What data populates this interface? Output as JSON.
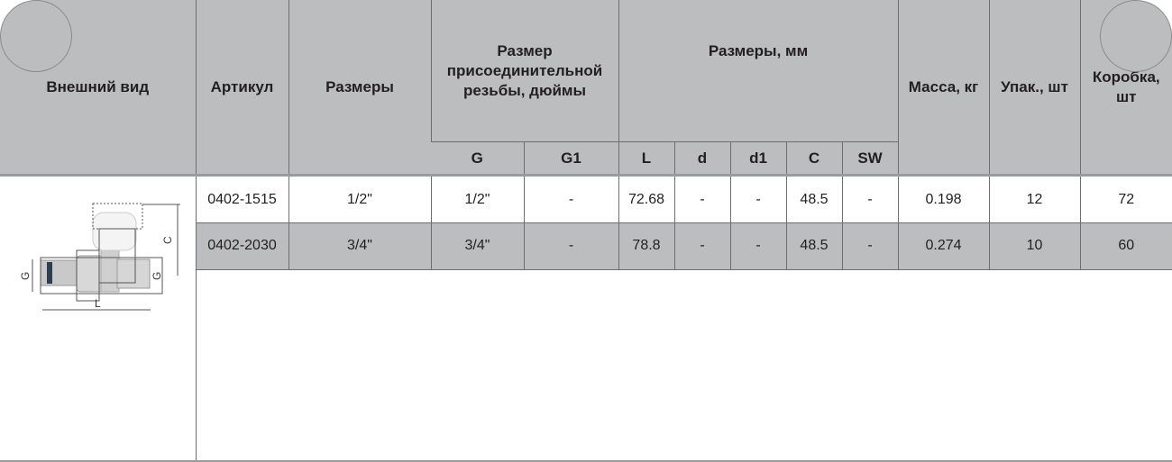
{
  "headers": {
    "appearance": "Внешний вид",
    "article": "Артикул",
    "sizes": "Размеры",
    "thread": "Размер присоединительной резьбы, дюймы",
    "thread_cols": [
      "G",
      "G1"
    ],
    "dims": "Размеры, мм",
    "dims_cols": [
      "L",
      "d",
      "d1",
      "C",
      "SW"
    ],
    "mass": "Масса, кг",
    "pack": "Упак., шт",
    "box": "Коробка, шт"
  },
  "rows": [
    {
      "article": "0402-1515",
      "size": "1/2\"",
      "G": "1/2\"",
      "G1": "-",
      "L": "72.68",
      "d": "-",
      "d1": "-",
      "C": "48.5",
      "SW": "-",
      "mass": "0.198",
      "pack": "12",
      "box": "72"
    },
    {
      "article": "0402-2030",
      "size": "3/4\"",
      "G": "3/4\"",
      "G1": "-",
      "L": "78.8",
      "d": "-",
      "d1": "-",
      "C": "48.5",
      "SW": "-",
      "mass": "0.274",
      "pack": "10",
      "box": "60"
    }
  ],
  "drawing_labels": {
    "G": "G",
    "C": "C",
    "L": "L"
  },
  "colors": {
    "header_bg": "#bcbdbf",
    "alt_row_bg": "#bcbdbf"
  }
}
